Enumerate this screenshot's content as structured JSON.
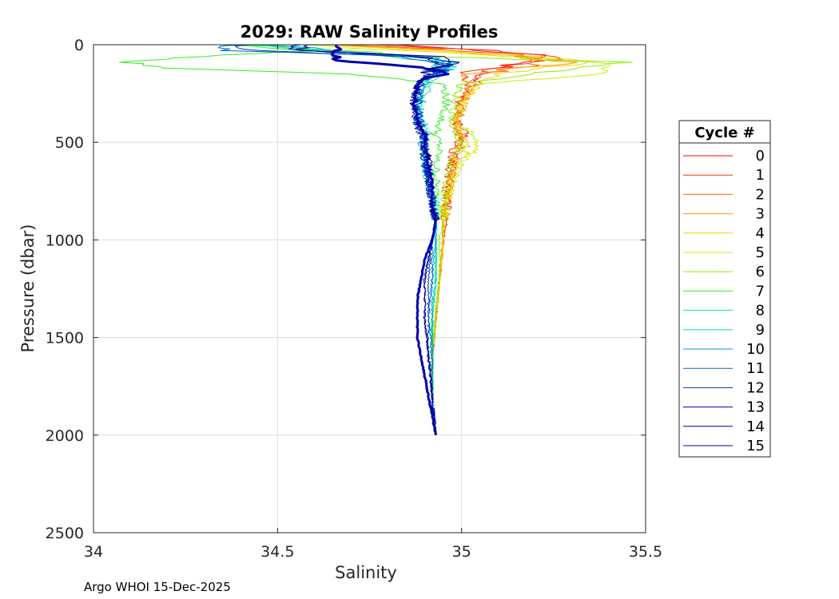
{
  "chart_data": {
    "type": "line",
    "title": "2029: RAW Salinity Profiles",
    "xlabel": "Salinity",
    "ylabel": "Pressure (dbar)",
    "xlim": [
      34,
      35.5
    ],
    "ylim": [
      0,
      2500
    ],
    "y_reversed": true,
    "grid": true,
    "x_ticks": [
      34,
      34.5,
      35,
      35.5
    ],
    "x_tick_labels": [
      "34",
      "34.5",
      "35",
      "35.5"
    ],
    "y_ticks": [
      0,
      500,
      1000,
      1500,
      2000,
      2500
    ],
    "y_tick_labels": [
      "0",
      "500",
      "1000",
      "1500",
      "2000",
      "2500"
    ],
    "legend": {
      "title": "Cycle #",
      "position": "right"
    },
    "footer": "Argo WHOI 15-Dec-2025",
    "series": [
      {
        "name": "0",
        "color": "#ff0000",
        "width": 1,
        "pressure": [
          0,
          30,
          60,
          90,
          150,
          200,
          300,
          400,
          460,
          520,
          600,
          700,
          800,
          900,
          1000,
          1200,
          1400,
          1600,
          1800,
          2000
        ],
        "salinity": [
          34.83,
          35.1,
          35.25,
          35.15,
          35.05,
          35.04,
          35.0,
          34.99,
          35.01,
          34.99,
          34.98,
          34.97,
          34.96,
          34.96,
          34.95,
          34.94,
          34.93,
          34.92,
          34.92,
          34.93
        ]
      },
      {
        "name": "1",
        "color": "#ff2e00",
        "width": 1,
        "pressure": [
          0,
          30,
          60,
          90,
          150,
          200,
          300,
          400,
          460,
          520,
          600,
          700,
          800,
          900,
          1000,
          1200,
          1400,
          1600,
          1800,
          2000
        ],
        "salinity": [
          34.78,
          35.05,
          35.28,
          35.2,
          35.0,
          35.02,
          34.99,
          34.98,
          35.0,
          34.98,
          34.97,
          34.96,
          34.96,
          34.95,
          34.95,
          34.94,
          34.93,
          34.92,
          34.92,
          34.93
        ]
      },
      {
        "name": "2",
        "color": "#ff6000",
        "width": 1,
        "pressure": [
          0,
          30,
          60,
          90,
          150,
          200,
          300,
          400,
          460,
          520,
          600,
          700,
          800,
          900,
          1000,
          1200,
          1400,
          1600,
          1800,
          2000
        ],
        "salinity": [
          34.7,
          35.0,
          35.18,
          35.22,
          35.05,
          35.03,
          35.0,
          34.98,
          34.99,
          35.0,
          34.98,
          34.97,
          34.96,
          34.95,
          34.95,
          34.94,
          34.93,
          34.92,
          34.92,
          34.93
        ]
      },
      {
        "name": "3",
        "color": "#ff9900",
        "width": 1,
        "pressure": [
          0,
          30,
          60,
          90,
          150,
          200,
          300,
          400,
          460,
          520,
          600,
          700,
          800,
          900,
          1000,
          1200,
          1400,
          1600,
          1800,
          2000
        ],
        "salinity": [
          34.65,
          34.95,
          35.15,
          35.3,
          35.0,
          35.02,
          35.01,
          34.99,
          35.0,
          34.99,
          34.98,
          34.97,
          34.96,
          34.96,
          34.95,
          34.94,
          34.93,
          34.92,
          34.92,
          34.93
        ]
      },
      {
        "name": "4",
        "color": "#ffcc00",
        "width": 1,
        "pressure": [
          0,
          30,
          60,
          90,
          150,
          200,
          300,
          400,
          460,
          520,
          600,
          700,
          800,
          900,
          1000,
          1200,
          1400,
          1600,
          1800,
          2000
        ],
        "salinity": [
          34.6,
          34.9,
          35.2,
          35.35,
          35.1,
          35.05,
          35.0,
          34.98,
          35.0,
          35.02,
          34.99,
          34.97,
          34.96,
          34.95,
          34.95,
          34.94,
          34.93,
          34.92,
          34.92,
          34.93
        ]
      },
      {
        "name": "5",
        "color": "#ccee00",
        "width": 1,
        "pressure": [
          0,
          30,
          60,
          90,
          150,
          200,
          300,
          400,
          460,
          520,
          600,
          700,
          800,
          900,
          1000,
          1200,
          1400,
          1600,
          1800,
          2000
        ],
        "salinity": [
          34.55,
          34.85,
          35.1,
          35.4,
          35.38,
          35.05,
          35.0,
          34.99,
          35.03,
          35.05,
          35.0,
          34.98,
          34.96,
          34.95,
          34.95,
          34.94,
          34.93,
          34.92,
          34.92,
          34.93
        ]
      },
      {
        "name": "6",
        "color": "#88ee00",
        "width": 1,
        "pressure": [
          0,
          30,
          60,
          90,
          150,
          200,
          300,
          400,
          460,
          520,
          600,
          700,
          800,
          900,
          1000,
          1200,
          1400,
          1600,
          1800,
          2000
        ],
        "salinity": [
          34.4,
          34.7,
          34.9,
          35.45,
          35.2,
          35.0,
          34.98,
          34.97,
          34.99,
          35.0,
          34.97,
          34.96,
          34.95,
          34.95,
          34.94,
          34.94,
          34.93,
          34.92,
          34.92,
          34.93
        ]
      },
      {
        "name": "7",
        "color": "#33ee22",
        "width": 1,
        "pressure": [
          0,
          30,
          60,
          90,
          120,
          150,
          200,
          300,
          400,
          460,
          520,
          600,
          700,
          800,
          900,
          1000,
          1200,
          1400,
          1600,
          1800,
          2000
        ],
        "salinity": [
          34.35,
          34.6,
          34.3,
          34.08,
          34.2,
          34.7,
          34.95,
          34.96,
          34.94,
          34.93,
          34.94,
          34.93,
          34.93,
          34.93,
          34.93,
          34.93,
          34.93,
          34.92,
          34.92,
          34.92,
          34.93
        ]
      },
      {
        "name": "8",
        "color": "#00ee88",
        "width": 1,
        "pressure": [
          0,
          30,
          60,
          90,
          150,
          200,
          300,
          400,
          460,
          520,
          600,
          700,
          800,
          900,
          1000,
          1200,
          1400,
          1600,
          1800,
          2000
        ],
        "salinity": [
          34.4,
          34.6,
          34.8,
          34.95,
          34.92,
          34.9,
          34.88,
          34.9,
          34.91,
          34.9,
          34.91,
          34.92,
          34.93,
          34.93,
          34.93,
          34.93,
          34.92,
          34.92,
          34.92,
          34.93
        ]
      },
      {
        "name": "9",
        "color": "#00ddcc",
        "width": 1,
        "pressure": [
          0,
          30,
          60,
          90,
          150,
          200,
          300,
          400,
          460,
          520,
          600,
          700,
          800,
          900,
          1000,
          1200,
          1400,
          1600,
          1800,
          2000
        ],
        "salinity": [
          34.45,
          34.62,
          34.85,
          34.98,
          34.95,
          34.92,
          34.89,
          34.88,
          34.9,
          34.89,
          34.9,
          34.91,
          34.92,
          34.93,
          34.93,
          34.93,
          34.92,
          34.92,
          34.92,
          34.93
        ]
      },
      {
        "name": "10",
        "color": "#0099ff",
        "width": 1,
        "pressure": [
          0,
          30,
          60,
          90,
          150,
          200,
          300,
          400,
          460,
          520,
          600,
          700,
          800,
          900,
          1000,
          1200,
          1400,
          1600,
          1800,
          2000
        ],
        "salinity": [
          34.5,
          34.65,
          34.9,
          34.96,
          34.94,
          34.9,
          34.88,
          34.89,
          34.9,
          34.89,
          34.9,
          34.91,
          34.92,
          34.93,
          34.93,
          34.92,
          34.92,
          34.92,
          34.92,
          34.93
        ]
      },
      {
        "name": "11",
        "color": "#0066cc",
        "width": 1,
        "pressure": [
          0,
          30,
          60,
          90,
          150,
          200,
          300,
          400,
          460,
          520,
          600,
          700,
          800,
          900,
          1000,
          1200,
          1400,
          1600,
          1800,
          2000
        ],
        "salinity": [
          34.37,
          34.37,
          34.85,
          34.95,
          34.92,
          34.89,
          34.87,
          34.88,
          34.89,
          34.9,
          34.9,
          34.91,
          34.92,
          34.93,
          34.92,
          34.92,
          34.91,
          34.92,
          34.92,
          34.93
        ]
      },
      {
        "name": "12",
        "color": "#0033bb",
        "width": 1,
        "pressure": [
          0,
          30,
          60,
          90,
          150,
          200,
          300,
          400,
          460,
          520,
          600,
          700,
          800,
          900,
          1000,
          1200,
          1400,
          1600,
          1800,
          2000
        ],
        "salinity": [
          34.4,
          34.42,
          34.88,
          34.96,
          34.93,
          34.89,
          34.88,
          34.89,
          34.9,
          34.89,
          34.9,
          34.91,
          34.92,
          34.93,
          34.92,
          34.91,
          34.91,
          34.91,
          34.92,
          34.93
        ]
      },
      {
        "name": "13",
        "color": "#0000aa",
        "width": 1,
        "pressure": [
          0,
          30,
          60,
          90,
          150,
          200,
          300,
          400,
          460,
          520,
          600,
          700,
          800,
          900,
          1000,
          1200,
          1400,
          1600,
          1800,
          2000
        ],
        "salinity": [
          34.55,
          34.55,
          34.9,
          34.95,
          34.92,
          34.88,
          34.87,
          34.88,
          34.9,
          34.9,
          34.9,
          34.91,
          34.92,
          34.93,
          34.92,
          34.9,
          34.9,
          34.91,
          34.92,
          34.93
        ]
      },
      {
        "name": "14",
        "color": "#000088",
        "width": 1,
        "pressure": [
          0,
          30,
          60,
          90,
          150,
          200,
          300,
          400,
          460,
          520,
          600,
          700,
          800,
          900,
          1000,
          1200,
          1400,
          1600,
          1800,
          2000
        ],
        "salinity": [
          34.58,
          34.58,
          34.92,
          34.96,
          34.91,
          34.88,
          34.87,
          34.88,
          34.89,
          34.9,
          34.91,
          34.91,
          34.92,
          34.93,
          34.92,
          34.9,
          34.9,
          34.91,
          34.92,
          34.93
        ]
      },
      {
        "name": "15",
        "color": "#0000aa",
        "width": 3,
        "pressure": [
          0,
          40,
          80,
          110,
          130,
          150,
          170,
          200,
          300,
          400,
          460,
          520,
          600,
          700,
          800,
          900,
          1000,
          1100,
          1200,
          1300,
          1400,
          1500,
          1600,
          1700,
          1800,
          1900,
          2000
        ],
        "salinity": [
          34.66,
          34.66,
          34.66,
          34.85,
          34.94,
          34.96,
          34.9,
          34.88,
          34.87,
          34.88,
          34.9,
          34.9,
          34.91,
          34.92,
          34.92,
          34.93,
          34.92,
          34.9,
          34.89,
          34.88,
          34.88,
          34.88,
          34.89,
          34.9,
          34.91,
          34.92,
          34.93
        ]
      }
    ]
  }
}
